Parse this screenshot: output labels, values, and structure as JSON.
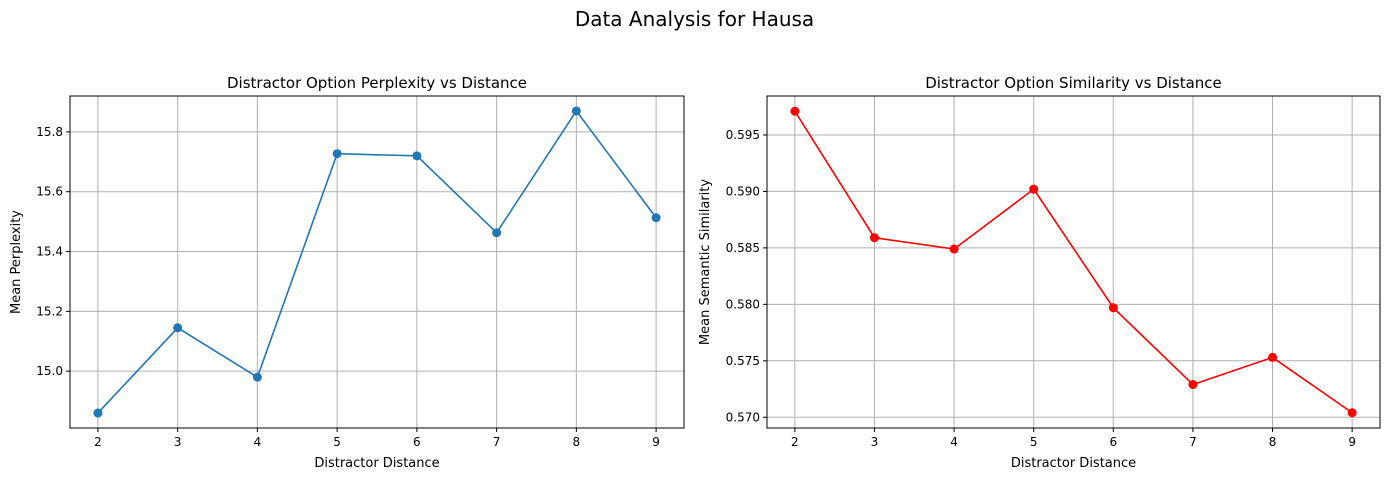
{
  "figure": {
    "suptitle": "Data Analysis for Hausa"
  },
  "chart_data": [
    {
      "type": "line",
      "title": "Distractor Option Perplexity vs Distance",
      "xlabel": "Distractor Distance",
      "ylabel": "Mean Perplexity",
      "x": [
        2,
        3,
        4,
        5,
        6,
        7,
        8,
        9
      ],
      "series": [
        {
          "values": [
            14.86,
            15.145,
            14.98,
            15.727,
            15.72,
            15.463,
            15.87,
            15.513
          ],
          "color": "#1f77b4",
          "marker": "circle"
        }
      ],
      "xlim": [
        1.65,
        9.35
      ],
      "ylim": [
        14.81,
        15.92
      ],
      "xticks": [
        2,
        3,
        4,
        5,
        6,
        7,
        8,
        9
      ],
      "yticks": [
        15.0,
        15.2,
        15.4,
        15.6,
        15.8
      ],
      "ytick_labels": [
        "15.0",
        "15.2",
        "15.4",
        "15.6",
        "15.8"
      ],
      "grid": true
    },
    {
      "type": "line",
      "title": "Distractor Option Similarity vs Distance",
      "xlabel": "Distractor Distance",
      "ylabel": "Mean Semantic Similarity",
      "x": [
        2,
        3,
        4,
        5,
        6,
        7,
        8,
        9
      ],
      "series": [
        {
          "values": [
            0.5971,
            0.5859,
            0.5849,
            0.5902,
            0.5797,
            0.5729,
            0.5753,
            0.5704
          ],
          "color": "#ff0000",
          "marker": "circle"
        }
      ],
      "xlim": [
        1.65,
        9.35
      ],
      "ylim": [
        0.56905,
        0.59845
      ],
      "xticks": [
        2,
        3,
        4,
        5,
        6,
        7,
        8,
        9
      ],
      "yticks": [
        0.57,
        0.575,
        0.58,
        0.585,
        0.59,
        0.595
      ],
      "ytick_labels": [
        "0.570",
        "0.575",
        "0.580",
        "0.585",
        "0.590",
        "0.595"
      ],
      "grid": true
    }
  ]
}
